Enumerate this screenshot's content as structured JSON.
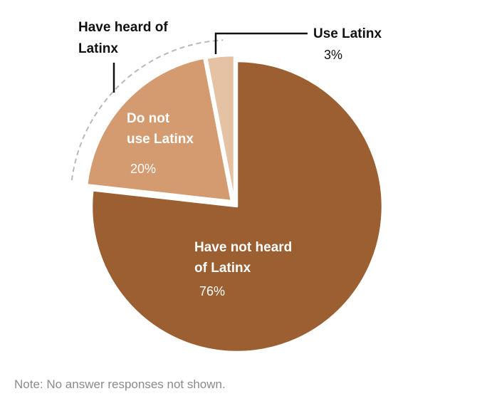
{
  "chart_data": {
    "type": "pie",
    "slices": [
      {
        "label_lines": [
          "Have not heard",
          "of Latinx"
        ],
        "value": 76,
        "value_label": "76%",
        "color": "#9b5f32"
      },
      {
        "label_lines": [
          "Do not",
          "use Latinx"
        ],
        "value": 20,
        "value_label": "20%",
        "color": "#d49a70"
      },
      {
        "label_lines": [
          "Use Latinx"
        ],
        "value": 3,
        "value_label": "3%",
        "color": "#e4c2a3"
      }
    ],
    "group_label_lines": [
      "Have heard of",
      "Latinx"
    ],
    "group_members": [
      "Do not use Latinx",
      "Use Latinx"
    ],
    "exploded_group": true
  },
  "note": "Note: No answer responses not shown.",
  "colors": {
    "label_dark": "#111111",
    "label_light": "#ffffff",
    "guide_dashed": "#b8b8b8",
    "note": "#8a8a8a"
  }
}
